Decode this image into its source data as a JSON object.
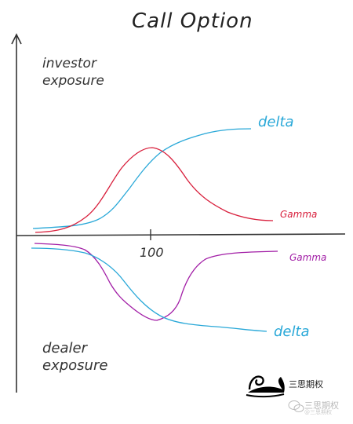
{
  "title": "Call Option",
  "investor_label": [
    "investor",
    "exposure"
  ],
  "dealer_label": [
    "dealer",
    "exposure"
  ],
  "tick_label": "100",
  "curve_labels": {
    "delta_top": "delta",
    "gamma_top": "Gamma",
    "gamma_bottom": "Gamma",
    "delta_bottom": "delta"
  },
  "colors": {
    "axis": "#333333",
    "delta": "#29a8d8",
    "gamma_investor": "#d81f3c",
    "gamma_dealer": "#a21ea6"
  },
  "watermark": {
    "text": "三思期权",
    "sub_text": "三思期权",
    "handle": "@三思期权",
    "icon": "swan-logo-icon"
  }
}
